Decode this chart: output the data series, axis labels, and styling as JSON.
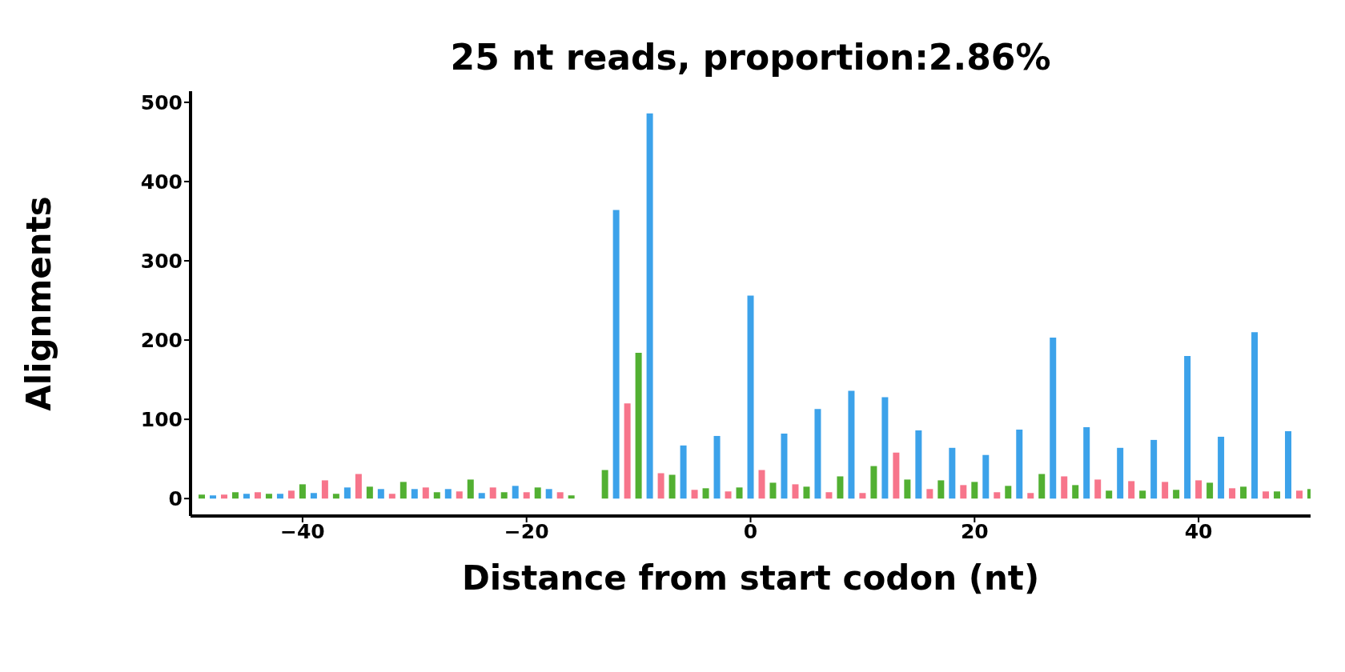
{
  "chart_data": {
    "type": "bar",
    "title": "25 nt reads, proportion:2.86%",
    "xlabel": "Distance from start codon (nt)",
    "ylabel": "Alignments",
    "series": [
      {
        "color": "#3ca2ea",
        "x": [
          -48,
          -45,
          -42,
          -39,
          -36,
          -33,
          -30,
          -27,
          -24,
          -21,
          -18,
          -15,
          -12,
          -9,
          -6,
          -3,
          0,
          3,
          6,
          9,
          12,
          15,
          18,
          21,
          24,
          27,
          30,
          33,
          36,
          39,
          42,
          45,
          48
        ],
        "values": [
          4,
          6,
          6,
          7,
          14,
          12,
          12,
          12,
          7,
          16,
          12,
          0,
          364,
          486,
          67,
          79,
          256,
          82,
          113,
          136,
          128,
          86,
          64,
          55,
          87,
          203,
          90,
          64,
          74,
          180,
          78,
          210,
          85
        ]
      },
      {
        "color": "#f7758b",
        "x": [
          -47,
          -44,
          -41,
          -38,
          -35,
          -32,
          -29,
          -26,
          -23,
          -20,
          -17,
          -14,
          -11,
          -8,
          -5,
          -2,
          1,
          4,
          7,
          10,
          13,
          16,
          19,
          22,
          25,
          28,
          31,
          34,
          37,
          40,
          43,
          46,
          49
        ],
        "values": [
          5,
          8,
          10,
          23,
          31,
          6,
          14,
          9,
          14,
          8,
          8,
          0,
          120,
          32,
          11,
          9,
          36,
          18,
          8,
          7,
          58,
          12,
          17,
          8,
          7,
          28,
          24,
          22,
          21,
          23,
          13,
          9,
          10
        ]
      },
      {
        "color": "#52b032",
        "x": [
          -49,
          -46,
          -43,
          -40,
          -37,
          -34,
          -31,
          -28,
          -25,
          -22,
          -19,
          -16,
          -13,
          -10,
          -7,
          -4,
          -1,
          2,
          5,
          8,
          11,
          14,
          17,
          20,
          23,
          26,
          29,
          32,
          35,
          38,
          41,
          44,
          47,
          50
        ],
        "values": [
          5,
          8,
          6,
          18,
          6,
          15,
          21,
          8,
          24,
          8,
          14,
          4,
          36,
          184,
          30,
          13,
          14,
          20,
          15,
          28,
          41,
          24,
          23,
          21,
          16,
          31,
          17,
          10,
          10,
          11,
          20,
          15,
          9,
          12
        ]
      }
    ],
    "xlim": [
      -50,
      50
    ],
    "xticks": [
      {
        "value": -40,
        "label": "−40"
      },
      {
        "value": -20,
        "label": "−20"
      },
      0,
      20,
      40
    ],
    "ylim": [
      -22,
      514
    ],
    "yticks": [
      0,
      100,
      200,
      300,
      400,
      500
    ],
    "grid": false,
    "legend": false
  }
}
